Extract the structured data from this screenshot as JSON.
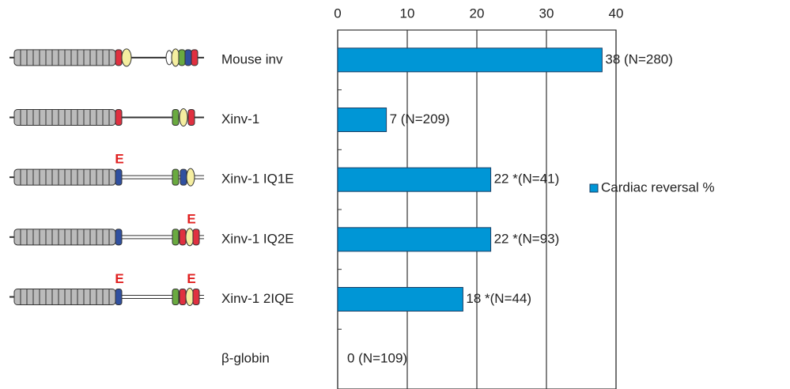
{
  "chart_data": {
    "type": "bar",
    "orientation": "horizontal",
    "categories": [
      "Mouse inv",
      "Xinv-1",
      "Xinv-1 IQ1E",
      "Xinv-1 IQ2E",
      "Xinv-1 2IQE",
      "β-globin"
    ],
    "series": [
      {
        "name": "Cardiac reversal %",
        "color": "#0096d6",
        "values": [
          38,
          7,
          22,
          22,
          18,
          0
        ],
        "value_labels": [
          "38 (N=280)",
          "7 (N=209)",
          "22 *(N=41)",
          "22 *(N=93)",
          "18 *(N=44)",
          "0 (N=109)"
        ]
      }
    ],
    "xlim": [
      0,
      40
    ],
    "xticks": [
      0,
      10,
      20,
      30,
      40
    ],
    "grid": true,
    "legend": "right",
    "annotations": [
      "E",
      "E",
      "E",
      "E"
    ]
  }
}
